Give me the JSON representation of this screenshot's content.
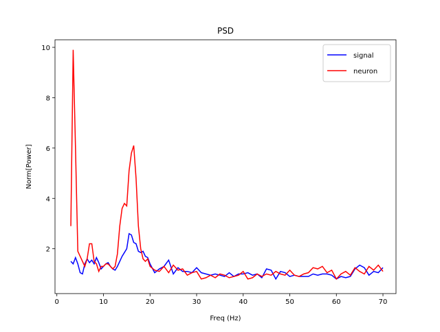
{
  "chart_data": {
    "type": "line",
    "title": "PSD",
    "xlabel": "Freq (Hz)",
    "ylabel": "Norm[Power]",
    "x": [
      3,
      3.5,
      4,
      4.5,
      5,
      5.5,
      6,
      6.5,
      7,
      7.5,
      8,
      8.5,
      9,
      9.5,
      10,
      10.5,
      11,
      11.5,
      12,
      12.5,
      13,
      13.5,
      14,
      14.5,
      15,
      15.5,
      16,
      16.5,
      17,
      17.5,
      18,
      18.5,
      19,
      19.5,
      20,
      21,
      22,
      23,
      24,
      25,
      26,
      27,
      28,
      29,
      30,
      31,
      32,
      33,
      34,
      35,
      36,
      37,
      38,
      39,
      40,
      41,
      42,
      43,
      44,
      45,
      46,
      47,
      48,
      49,
      50,
      51,
      52,
      53,
      54,
      55,
      56,
      57,
      58,
      59,
      60,
      61,
      62,
      63,
      64,
      65,
      66,
      67,
      68,
      69,
      70
    ],
    "series": [
      {
        "name": "signal",
        "color": "#0000ff",
        "values": [
          1.5,
          1.4,
          1.65,
          1.4,
          1.05,
          1.0,
          1.4,
          1.6,
          1.45,
          1.55,
          1.4,
          1.65,
          1.45,
          1.2,
          1.3,
          1.4,
          1.45,
          1.3,
          1.2,
          1.15,
          1.3,
          1.5,
          1.7,
          1.85,
          2.0,
          2.6,
          2.55,
          2.25,
          2.2,
          1.9,
          1.85,
          1.9,
          1.7,
          1.65,
          1.4,
          1.05,
          1.2,
          1.3,
          1.55,
          1.0,
          1.25,
          1.1,
          1.1,
          1.05,
          1.25,
          1.05,
          1.0,
          0.95,
          1.0,
          0.95,
          0.9,
          1.05,
          0.9,
          1.0,
          1.0,
          1.05,
          0.95,
          1.0,
          0.85,
          1.2,
          1.15,
          0.8,
          1.1,
          1.05,
          0.9,
          0.95,
          0.9,
          0.9,
          0.9,
          1.0,
          0.95,
          1.0,
          1.0,
          0.95,
          0.8,
          0.9,
          0.85,
          0.9,
          1.2,
          1.35,
          1.25,
          0.95,
          1.1,
          1.05,
          1.25
        ]
      },
      {
        "name": "neuron",
        "color": "#ff0000",
        "values": [
          2.9,
          9.9,
          6.0,
          1.9,
          1.7,
          1.5,
          1.3,
          1.6,
          2.2,
          2.2,
          1.5,
          1.4,
          1.1,
          1.3,
          1.3,
          1.4,
          1.4,
          1.3,
          1.2,
          1.3,
          1.8,
          2.9,
          3.6,
          3.8,
          3.7,
          5.1,
          5.8,
          6.1,
          4.8,
          2.9,
          2.0,
          1.6,
          1.5,
          1.6,
          1.3,
          1.15,
          1.1,
          1.3,
          1.05,
          1.35,
          1.15,
          1.2,
          0.95,
          1.05,
          1.1,
          0.8,
          0.85,
          0.95,
          0.85,
          1.0,
          0.95,
          0.85,
          0.9,
          0.95,
          1.1,
          0.8,
          0.85,
          1.0,
          0.9,
          1.0,
          0.95,
          1.1,
          1.0,
          0.95,
          1.15,
          0.95,
          0.9,
          1.0,
          1.05,
          1.25,
          1.2,
          1.3,
          1.05,
          1.15,
          0.8,
          1.0,
          1.1,
          0.95,
          1.25,
          1.1,
          1.0,
          1.3,
          1.15,
          1.35,
          1.1
        ]
      }
    ],
    "xlim": [
      -0.4,
      72.8
    ],
    "ylim": [
      0.22,
      10.3
    ],
    "xticks": [
      0,
      10,
      20,
      30,
      40,
      50,
      60,
      70
    ],
    "yticks": [
      2,
      4,
      6,
      8,
      10
    ],
    "legend": "upper right"
  }
}
